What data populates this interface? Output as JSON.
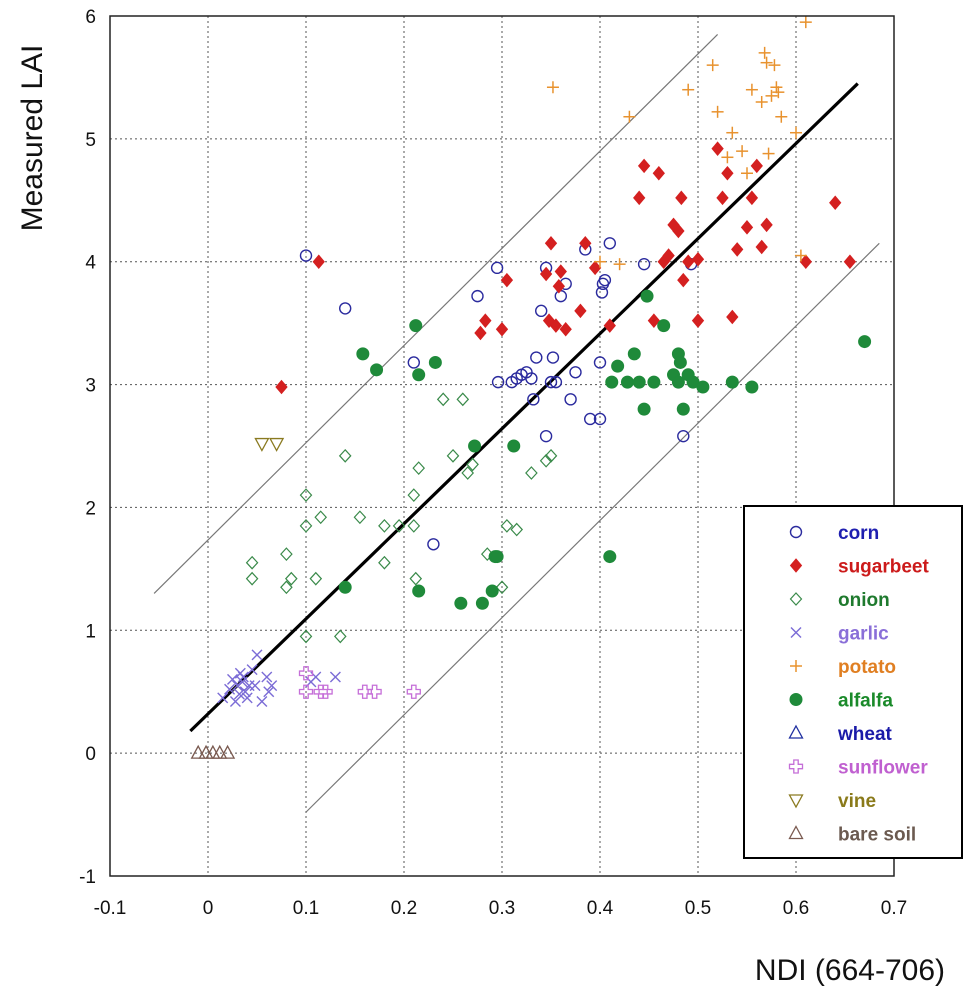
{
  "chart_data": {
    "type": "scatter",
    "xlabel": "NDI (664-706)",
    "ylabel": "Measured LAI",
    "xlim": [
      -0.1,
      0.7
    ],
    "ylim": [
      -1,
      6
    ],
    "x_ticks": [
      "-0.1",
      "0",
      "0.1",
      "0.2",
      "0.3",
      "0.4",
      "0.5",
      "0.6",
      "0.7"
    ],
    "y_ticks": [
      "-1",
      "0",
      "1",
      "2",
      "3",
      "4",
      "5",
      "6"
    ],
    "grid": true,
    "legend_position": "bottom-right",
    "regression_line": {
      "x": [
        -0.018,
        0.663
      ],
      "y": [
        0.18,
        5.45
      ]
    },
    "bound_lines": [
      {
        "x": [
          -0.055,
          0.52
        ],
        "y": [
          1.3,
          5.85
        ]
      },
      {
        "x": [
          0.1,
          0.685
        ],
        "y": [
          -0.48,
          4.15
        ]
      }
    ],
    "series": [
      {
        "name": "corn",
        "marker": "circle-open",
        "color": "#2b2b9e",
        "label_color": "#1f1fb0",
        "x": [
          0.1,
          0.14,
          0.21,
          0.23,
          0.275,
          0.295,
          0.296,
          0.31,
          0.315,
          0.32,
          0.325,
          0.33,
          0.332,
          0.335,
          0.34,
          0.345,
          0.345,
          0.35,
          0.352,
          0.355,
          0.36,
          0.365,
          0.37,
          0.375,
          0.385,
          0.39,
          0.4,
          0.4,
          0.402,
          0.403,
          0.405,
          0.41,
          0.445,
          0.485,
          0.493
        ],
        "y": [
          4.05,
          3.62,
          3.18,
          1.7,
          3.72,
          3.95,
          3.02,
          3.02,
          3.05,
          3.08,
          3.1,
          3.05,
          2.88,
          3.22,
          3.6,
          3.95,
          2.58,
          3.02,
          3.22,
          3.02,
          3.72,
          3.82,
          2.88,
          3.1,
          4.1,
          2.72,
          2.72,
          3.18,
          3.75,
          3.82,
          3.85,
          4.15,
          3.98,
          2.58,
          3.98
        ]
      },
      {
        "name": "sugarbeet",
        "marker": "diamond-filled",
        "color": "#d42020",
        "label_color": "#cc1a1a",
        "x": [
          0.075,
          0.113,
          0.278,
          0.283,
          0.3,
          0.305,
          0.345,
          0.348,
          0.35,
          0.355,
          0.358,
          0.36,
          0.365,
          0.38,
          0.385,
          0.395,
          0.41,
          0.44,
          0.445,
          0.455,
          0.46,
          0.465,
          0.47,
          0.475,
          0.48,
          0.483,
          0.485,
          0.49,
          0.5,
          0.5,
          0.52,
          0.525,
          0.53,
          0.535,
          0.54,
          0.55,
          0.555,
          0.56,
          0.565,
          0.57,
          0.61,
          0.64,
          0.655
        ],
        "y": [
          2.98,
          4.0,
          3.42,
          3.52,
          3.45,
          3.85,
          3.9,
          3.52,
          4.15,
          3.48,
          3.8,
          3.92,
          3.45,
          3.6,
          4.15,
          3.95,
          3.48,
          4.52,
          4.78,
          3.52,
          4.72,
          4.0,
          4.05,
          4.3,
          4.25,
          4.52,
          3.85,
          4.0,
          3.52,
          4.02,
          4.92,
          4.52,
          4.72,
          3.55,
          4.1,
          4.28,
          4.52,
          4.78,
          4.12,
          4.3,
          4.0,
          4.48,
          4.0
        ]
      },
      {
        "name": "onion",
        "marker": "diamond-open",
        "color": "#3a8a4a",
        "label_color": "#1f7a2e",
        "x": [
          0.045,
          0.045,
          0.08,
          0.08,
          0.085,
          0.1,
          0.1,
          0.1,
          0.11,
          0.115,
          0.135,
          0.14,
          0.155,
          0.18,
          0.18,
          0.195,
          0.21,
          0.21,
          0.212,
          0.215,
          0.24,
          0.25,
          0.26,
          0.265,
          0.27,
          0.285,
          0.3,
          0.305,
          0.315,
          0.33,
          0.345,
          0.35
        ],
        "y": [
          1.55,
          1.42,
          1.62,
          1.35,
          1.42,
          2.1,
          1.85,
          0.95,
          1.42,
          1.92,
          0.95,
          2.42,
          1.92,
          1.85,
          1.55,
          1.85,
          2.1,
          1.85,
          1.42,
          2.32,
          2.88,
          2.42,
          2.88,
          2.28,
          2.35,
          1.62,
          1.35,
          1.85,
          1.82,
          2.28,
          2.38,
          2.42
        ]
      },
      {
        "name": "garlic",
        "marker": "x",
        "color": "#7b6cd6",
        "label_color": "#8a6fd8",
        "x": [
          0.015,
          0.022,
          0.025,
          0.028,
          0.03,
          0.032,
          0.033,
          0.035,
          0.036,
          0.038,
          0.04,
          0.042,
          0.045,
          0.048,
          0.05,
          0.055,
          0.06,
          0.062,
          0.065,
          0.105,
          0.11,
          0.13
        ],
        "y": [
          0.45,
          0.52,
          0.6,
          0.42,
          0.55,
          0.48,
          0.65,
          0.58,
          0.62,
          0.5,
          0.45,
          0.55,
          0.68,
          0.55,
          0.8,
          0.42,
          0.62,
          0.5,
          0.55,
          0.58,
          0.62,
          0.62
        ]
      },
      {
        "name": "potato",
        "marker": "plus",
        "color": "#e8922e",
        "label_color": "#e07f22",
        "x": [
          0.352,
          0.4,
          0.43,
          0.42,
          0.49,
          0.515,
          0.52,
          0.53,
          0.535,
          0.545,
          0.55,
          0.555,
          0.565,
          0.568,
          0.57,
          0.572,
          0.575,
          0.578,
          0.58,
          0.582,
          0.585,
          0.6,
          0.605,
          0.61
        ],
        "y": [
          5.42,
          4.0,
          5.18,
          3.98,
          5.4,
          5.6,
          5.22,
          4.85,
          5.05,
          4.9,
          4.72,
          5.4,
          5.3,
          5.7,
          5.62,
          4.88,
          5.35,
          5.6,
          5.42,
          5.38,
          5.18,
          5.05,
          4.05,
          5.95
        ]
      },
      {
        "name": "alfalfa",
        "marker": "circle-filled",
        "color": "#1f8a3a",
        "label_color": "#1a8a2a",
        "x": [
          0.14,
          0.158,
          0.172,
          0.212,
          0.215,
          0.215,
          0.232,
          0.258,
          0.272,
          0.28,
          0.29,
          0.293,
          0.295,
          0.312,
          0.41,
          0.412,
          0.418,
          0.428,
          0.435,
          0.44,
          0.445,
          0.448,
          0.455,
          0.465,
          0.475,
          0.48,
          0.48,
          0.482,
          0.485,
          0.49,
          0.495,
          0.505,
          0.535,
          0.555,
          0.67
        ],
        "y": [
          1.35,
          3.25,
          3.12,
          3.48,
          3.08,
          1.32,
          3.18,
          1.22,
          2.5,
          1.22,
          1.32,
          1.6,
          1.6,
          2.5,
          1.6,
          3.02,
          3.15,
          3.02,
          3.25,
          3.02,
          2.8,
          3.72,
          3.02,
          3.48,
          3.08,
          3.02,
          3.25,
          3.18,
          2.8,
          3.08,
          3.02,
          2.98,
          3.02,
          2.98,
          3.35
        ]
      },
      {
        "name": "wheat",
        "marker": "triangle-up-open",
        "color": "#1f2fa0",
        "label_color": "#1a1aa8",
        "x": [],
        "y": []
      },
      {
        "name": "sunflower",
        "marker": "plus-open",
        "color": "#c56fd8",
        "label_color": "#c060d0",
        "x": [
          0.1,
          0.1,
          0.115,
          0.12,
          0.16,
          0.17,
          0.21
        ],
        "y": [
          0.65,
          0.5,
          0.5,
          0.5,
          0.5,
          0.5,
          0.5
        ]
      },
      {
        "name": "vine",
        "marker": "triangle-down-open",
        "color": "#8a7a20",
        "label_color": "#8a7a1a",
        "x": [
          0.055,
          0.07
        ],
        "y": [
          2.52,
          2.52
        ]
      },
      {
        "name": "bare soil",
        "marker": "triangle-up-open",
        "color": "#7a5a50",
        "label_color": "#6b5a50",
        "x": [
          -0.01,
          -0.002,
          0.005,
          0.012,
          0.02
        ],
        "y": [
          0.0,
          0.0,
          0.0,
          0.0,
          0.0
        ]
      }
    ]
  }
}
